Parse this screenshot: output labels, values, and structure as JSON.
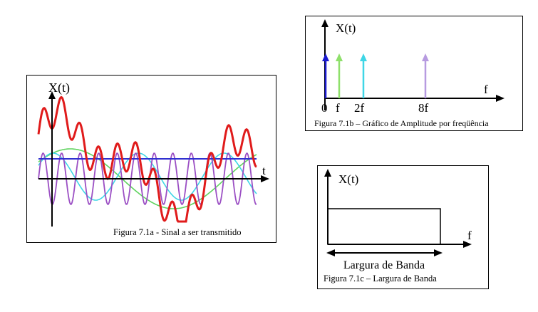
{
  "figure_a": {
    "caption": "Figura 7.1a - Sinal a ser transmitido",
    "y_axis_label": "X(t)",
    "x_axis_label": "t",
    "colors": {
      "composite": "#e01b1b",
      "purple": "#9b4fc4",
      "cyan": "#3fd6e6",
      "green": "#5fd35f",
      "blue": "#3030d0"
    }
  },
  "figure_b": {
    "caption": "Figura 7.1b – Gráfico de Amplitude por freqüência",
    "y_axis_label": "X(t)",
    "x_axis_label": "f",
    "ticks": [
      {
        "label": "0",
        "color": "#1a1ad0"
      },
      {
        "label": "f",
        "color": "#8ee06a"
      },
      {
        "label": "2f",
        "color": "#3fd6e6"
      },
      {
        "label": "8f",
        "color": "#b79be0"
      }
    ]
  },
  "figure_c": {
    "caption": "Figura 7.1c – Largura de Banda",
    "y_axis_label": "X(t)",
    "x_axis_label": "f",
    "band_label": "Largura de Banda"
  }
}
